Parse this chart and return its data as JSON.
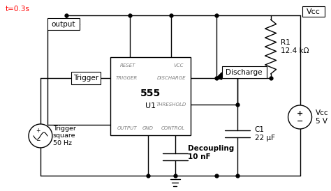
{
  "title": "t=0.3s",
  "title_color": "#ff0000",
  "bg_color": "#ffffff",
  "line_color": "#000000",
  "pin_label_color": "#808080",
  "fig_width": 4.74,
  "fig_height": 2.74,
  "dpi": 100,
  "output_label": "output",
  "vcc_top_label": "Vcc",
  "r1_label": "R1\n12.4 kΩ",
  "discharge_label": "Discharge",
  "trigger_box_label": "Trigger",
  "vcc_source_label": "Vcc\n5 V",
  "c1_label": "C1\n22 μF",
  "decoupling_label": "Decoupling\n10 nF",
  "trigger_square_label": "Trigger\nsquare\n50 Hz",
  "ic_name": "555",
  "ic_ref": "U1",
  "pin_reset": "RESET",
  "pin_vcc": "VCC",
  "pin_trigger": "TRIGGER",
  "pin_discharge": "DISCHARGE",
  "pin_threshold": "THRESHOLD",
  "pin_output": "OUTPUT",
  "pin_gnd": "GND",
  "pin_control": "CONTROL"
}
